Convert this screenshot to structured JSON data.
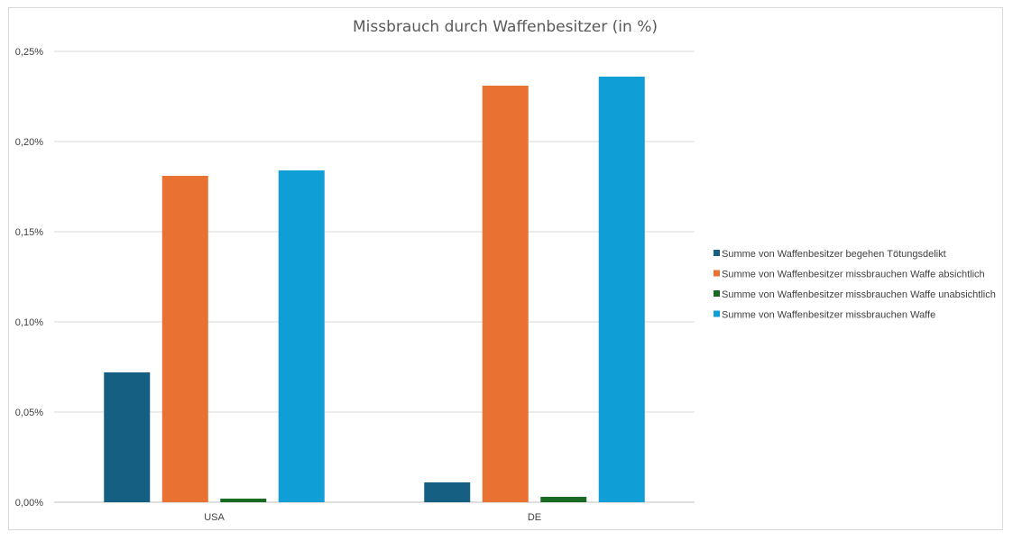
{
  "chart_data": {
    "type": "bar",
    "title": "Missbrauch durch Waffenbesitzer (in %)",
    "categories": [
      "USA",
      "DE"
    ],
    "series": [
      {
        "name": "Summe von Waffenbesitzer begehen Tötungsdelikt",
        "color": "#156082",
        "values": [
          0.00072,
          0.00011
        ]
      },
      {
        "name": "Summe von Waffenbesitzer missbrauchen Waffe absichtlich",
        "color": "#E97132",
        "values": [
          0.00181,
          0.00231
        ]
      },
      {
        "name": "Summe von Waffenbesitzer missbrauchen Waffe unabsichtlich",
        "color": "#196B24",
        "values": [
          2e-05,
          3e-05
        ]
      },
      {
        "name": "Summe von Waffenbesitzer missbrauchen Waffe",
        "color": "#0F9ED5",
        "values": [
          0.00184,
          0.00236
        ]
      }
    ],
    "ylim": [
      0,
      0.0025
    ],
    "yticks": [
      0,
      0.0005,
      0.001,
      0.0015,
      0.002,
      0.0025
    ],
    "ytick_labels": [
      "0,00%",
      "0,05%",
      "0,10%",
      "0,15%",
      "0,20%",
      "0,25%"
    ],
    "grid": true,
    "legend_position": "right",
    "xlabel": "",
    "ylabel": ""
  }
}
